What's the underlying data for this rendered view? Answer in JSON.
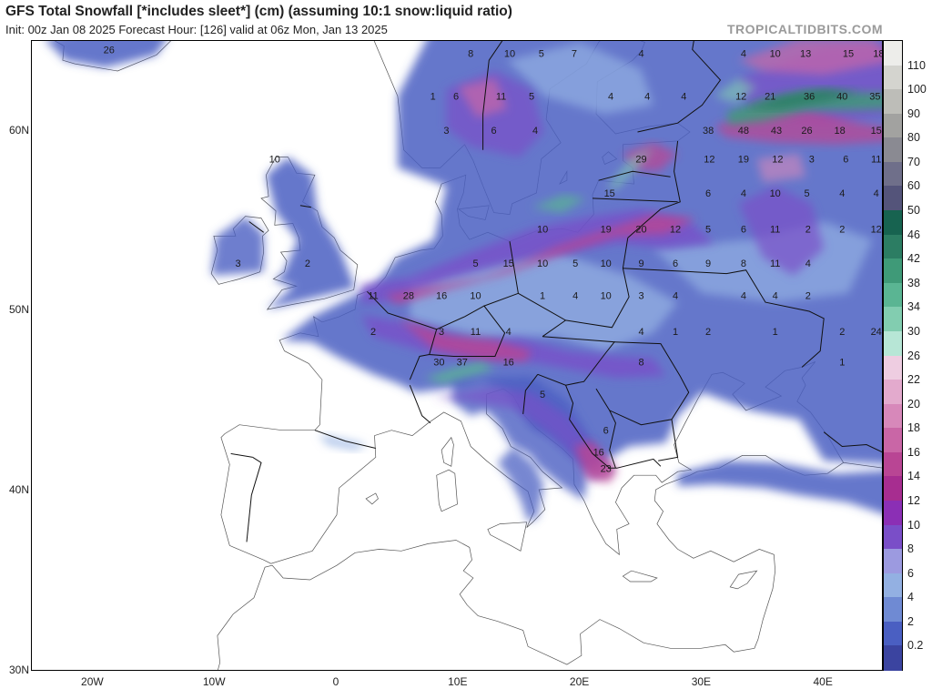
{
  "header": {
    "title": "GFS Total Snowfall [*includes sleet*] (cm) (assuming 10:1 snow:liquid ratio)",
    "subtitle": "Init: 00z Jan 08 2025   Forecast Hour: [126]   valid at 06z Mon, Jan 13 2025",
    "brand": "TROPICALTIDBITS.COM"
  },
  "axes": {
    "lat_labels": [
      {
        "label": "60N",
        "lat": 60
      },
      {
        "label": "50N",
        "lat": 50
      },
      {
        "label": "40N",
        "lat": 40
      },
      {
        "label": "30N",
        "lat": 30
      }
    ],
    "lon_labels": [
      {
        "label": "20W",
        "lon": -20
      },
      {
        "label": "10W",
        "lon": -10
      },
      {
        "label": "0",
        "lon": 0
      },
      {
        "label": "10E",
        "lon": 10
      },
      {
        "label": "20E",
        "lon": 20
      },
      {
        "label": "30E",
        "lon": 30
      },
      {
        "label": "40E",
        "lon": 40
      }
    ]
  },
  "legend": {
    "labels": [
      "110",
      "100",
      "90",
      "80",
      "70",
      "60",
      "50",
      "46",
      "42",
      "38",
      "34",
      "30",
      "26",
      "22",
      "20",
      "18",
      "16",
      "14",
      "12",
      "10",
      "8",
      "6",
      "4",
      "2",
      "0.2"
    ],
    "colors": [
      "#ededea",
      "#d4d4cf",
      "#bdbdb8",
      "#a2a2a0",
      "#8a8a92",
      "#6f6f8a",
      "#54547a",
      "#176350",
      "#2c7d63",
      "#3f9a78",
      "#5ab593",
      "#82cdb0",
      "#b7e6d6",
      "#eecde1",
      "#e3aacd",
      "#d788ba",
      "#c966a6",
      "#b94594",
      "#a72d90",
      "#8b2fb5",
      "#7a4ec8",
      "#9c9ae0",
      "#93b0e2",
      "#6f8ad3",
      "#4a5fc2",
      "#3b44a0"
    ]
  },
  "snow_values": [
    {
      "v": "26",
      "lat": 64.6,
      "lon": -18.7
    },
    {
      "v": "8",
      "lat": 64.4,
      "lon": 11.0
    },
    {
      "v": "10",
      "lat": 64.4,
      "lon": 14.2
    },
    {
      "v": "5",
      "lat": 64.4,
      "lon": 16.8
    },
    {
      "v": "7",
      "lat": 64.4,
      "lon": 19.5
    },
    {
      "v": "4",
      "lat": 64.4,
      "lon": 25.0
    },
    {
      "v": "4",
      "lat": 64.4,
      "lon": 33.4
    },
    {
      "v": "10",
      "lat": 64.4,
      "lon": 36.0
    },
    {
      "v": "13",
      "lat": 64.4,
      "lon": 38.5
    },
    {
      "v": "15",
      "lat": 64.4,
      "lon": 42.0
    },
    {
      "v": "18",
      "lat": 64.4,
      "lon": 44.5
    },
    {
      "v": "1",
      "lat": 62.0,
      "lon": 7.9
    },
    {
      "v": "6",
      "lat": 62.0,
      "lon": 9.8
    },
    {
      "v": "11",
      "lat": 62.0,
      "lon": 13.5
    },
    {
      "v": "5",
      "lat": 62.0,
      "lon": 16.0
    },
    {
      "v": "4",
      "lat": 62.0,
      "lon": 22.5
    },
    {
      "v": "4",
      "lat": 62.0,
      "lon": 25.5
    },
    {
      "v": "4",
      "lat": 62.0,
      "lon": 28.5
    },
    {
      "v": "12",
      "lat": 62.0,
      "lon": 33.2
    },
    {
      "v": "21",
      "lat": 62.0,
      "lon": 35.6
    },
    {
      "v": "36",
      "lat": 62.0,
      "lon": 38.8
    },
    {
      "v": "40",
      "lat": 62.0,
      "lon": 41.5
    },
    {
      "v": "35",
      "lat": 62.0,
      "lon": 44.2
    },
    {
      "v": "3",
      "lat": 60.1,
      "lon": 9.0
    },
    {
      "v": "6",
      "lat": 60.1,
      "lon": 12.9
    },
    {
      "v": "4",
      "lat": 60.1,
      "lon": 16.3
    },
    {
      "v": "38",
      "lat": 60.1,
      "lon": 30.5
    },
    {
      "v": "48",
      "lat": 60.1,
      "lon": 33.4
    },
    {
      "v": "43",
      "lat": 60.1,
      "lon": 36.1
    },
    {
      "v": "26",
      "lat": 60.1,
      "lon": 38.6
    },
    {
      "v": "18",
      "lat": 60.1,
      "lon": 41.3
    },
    {
      "v": "15",
      "lat": 60.1,
      "lon": 44.3
    },
    {
      "v": "10",
      "lat": 58.5,
      "lon": -5.1
    },
    {
      "v": "29",
      "lat": 58.5,
      "lon": 25.0
    },
    {
      "v": "12",
      "lat": 58.5,
      "lon": 30.6
    },
    {
      "v": "19",
      "lat": 58.5,
      "lon": 33.4
    },
    {
      "v": "12",
      "lat": 58.5,
      "lon": 36.2
    },
    {
      "v": "3",
      "lat": 58.5,
      "lon": 39.0
    },
    {
      "v": "6",
      "lat": 58.5,
      "lon": 41.8
    },
    {
      "v": "11",
      "lat": 58.5,
      "lon": 44.3
    },
    {
      "v": "15",
      "lat": 56.6,
      "lon": 22.4
    },
    {
      "v": "6",
      "lat": 56.6,
      "lon": 30.5
    },
    {
      "v": "4",
      "lat": 56.6,
      "lon": 33.4
    },
    {
      "v": "10",
      "lat": 56.6,
      "lon": 36.0
    },
    {
      "v": "5",
      "lat": 56.6,
      "lon": 38.6
    },
    {
      "v": "4",
      "lat": 56.6,
      "lon": 41.5
    },
    {
      "v": "4",
      "lat": 56.6,
      "lon": 44.3
    },
    {
      "v": "10",
      "lat": 54.6,
      "lon": 16.9
    },
    {
      "v": "19",
      "lat": 54.6,
      "lon": 22.1
    },
    {
      "v": "20",
      "lat": 54.6,
      "lon": 25.0
    },
    {
      "v": "12",
      "lat": 54.6,
      "lon": 27.8
    },
    {
      "v": "5",
      "lat": 54.6,
      "lon": 30.5
    },
    {
      "v": "6",
      "lat": 54.6,
      "lon": 33.4
    },
    {
      "v": "11",
      "lat": 54.6,
      "lon": 36.0
    },
    {
      "v": "2",
      "lat": 54.6,
      "lon": 38.7
    },
    {
      "v": "2",
      "lat": 54.6,
      "lon": 41.5
    },
    {
      "v": "12",
      "lat": 54.6,
      "lon": 44.3
    },
    {
      "v": "3",
      "lat": 52.7,
      "lon": -8.1
    },
    {
      "v": "2",
      "lat": 52.7,
      "lon": -2.4
    },
    {
      "v": "5",
      "lat": 52.7,
      "lon": 11.4
    },
    {
      "v": "15",
      "lat": 52.7,
      "lon": 14.1
    },
    {
      "v": "10",
      "lat": 52.7,
      "lon": 16.9
    },
    {
      "v": "5",
      "lat": 52.7,
      "lon": 19.6
    },
    {
      "v": "10",
      "lat": 52.7,
      "lon": 22.1
    },
    {
      "v": "9",
      "lat": 52.7,
      "lon": 25.0
    },
    {
      "v": "6",
      "lat": 52.7,
      "lon": 27.8
    },
    {
      "v": "9",
      "lat": 52.7,
      "lon": 30.5
    },
    {
      "v": "8",
      "lat": 52.7,
      "lon": 33.4
    },
    {
      "v": "11",
      "lat": 52.7,
      "lon": 36.0
    },
    {
      "v": "4",
      "lat": 52.7,
      "lon": 38.7
    },
    {
      "v": "11",
      "lat": 50.9,
      "lon": 3.0
    },
    {
      "v": "28",
      "lat": 50.9,
      "lon": 5.9
    },
    {
      "v": "16",
      "lat": 50.9,
      "lon": 8.6
    },
    {
      "v": "10",
      "lat": 50.9,
      "lon": 11.4
    },
    {
      "v": "1",
      "lat": 50.9,
      "lon": 16.9
    },
    {
      "v": "4",
      "lat": 50.9,
      "lon": 19.6
    },
    {
      "v": "10",
      "lat": 50.9,
      "lon": 22.1
    },
    {
      "v": "3",
      "lat": 50.9,
      "lon": 25.0
    },
    {
      "v": "4",
      "lat": 50.9,
      "lon": 27.8
    },
    {
      "v": "4",
      "lat": 50.9,
      "lon": 33.4
    },
    {
      "v": "4",
      "lat": 50.9,
      "lon": 36.0
    },
    {
      "v": "2",
      "lat": 50.9,
      "lon": 38.7
    },
    {
      "v": "2",
      "lat": 48.9,
      "lon": 3.0
    },
    {
      "v": "3",
      "lat": 48.9,
      "lon": 8.6
    },
    {
      "v": "11",
      "lat": 48.9,
      "lon": 11.4
    },
    {
      "v": "4",
      "lat": 48.9,
      "lon": 14.1
    },
    {
      "v": "4",
      "lat": 48.9,
      "lon": 25.0
    },
    {
      "v": "1",
      "lat": 48.9,
      "lon": 27.8
    },
    {
      "v": "2",
      "lat": 48.9,
      "lon": 30.5
    },
    {
      "v": "1",
      "lat": 48.9,
      "lon": 36.0
    },
    {
      "v": "2",
      "lat": 48.9,
      "lon": 41.5
    },
    {
      "v": "24",
      "lat": 48.9,
      "lon": 44.3
    },
    {
      "v": "30",
      "lat": 47.2,
      "lon": 8.4
    },
    {
      "v": "37",
      "lat": 47.2,
      "lon": 10.3
    },
    {
      "v": "16",
      "lat": 47.2,
      "lon": 14.1
    },
    {
      "v": "8",
      "lat": 47.2,
      "lon": 25.0
    },
    {
      "v": "1",
      "lat": 47.2,
      "lon": 41.5
    },
    {
      "v": "5",
      "lat": 45.4,
      "lon": 16.9
    },
    {
      "v": "6",
      "lat": 43.4,
      "lon": 22.1
    },
    {
      "v": "16",
      "lat": 42.2,
      "lon": 21.5
    },
    {
      "v": "23",
      "lat": 41.3,
      "lon": 22.1
    }
  ]
}
